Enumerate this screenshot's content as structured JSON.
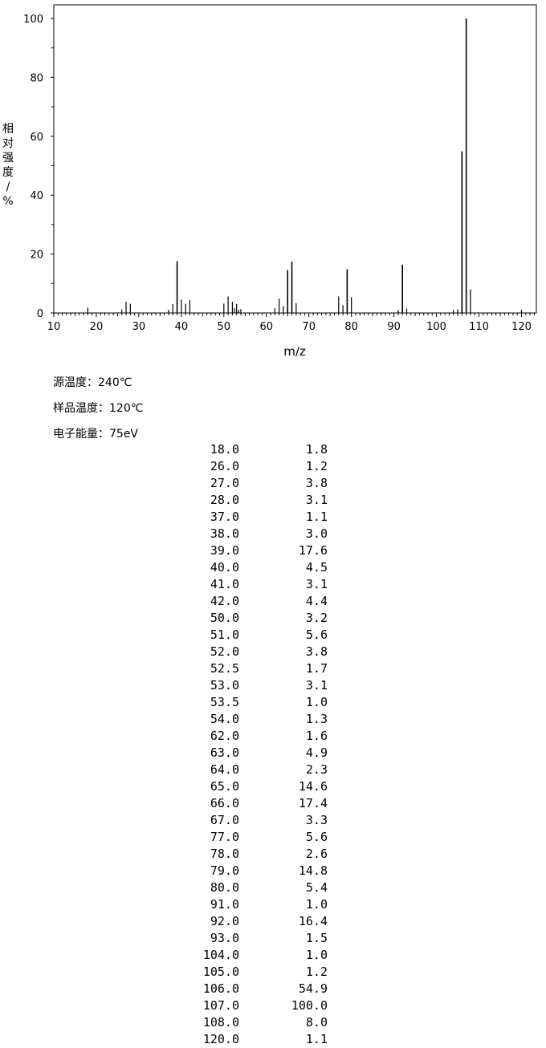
{
  "chart_data": {
    "type": "bar",
    "xlabel": "m/z",
    "ylabel": "相对强度/%",
    "xlim": [
      10,
      123.5
    ],
    "ylim": [
      0,
      100
    ],
    "xticks": [
      10,
      20,
      30,
      40,
      50,
      60,
      70,
      80,
      90,
      100,
      110,
      120
    ],
    "yticks": [
      0,
      20,
      40,
      60,
      80,
      100
    ],
    "grid": false,
    "peaks": [
      {
        "mz": 18.0,
        "intensity": 1.8
      },
      {
        "mz": 26.0,
        "intensity": 1.2
      },
      {
        "mz": 27.0,
        "intensity": 3.8
      },
      {
        "mz": 28.0,
        "intensity": 3.1
      },
      {
        "mz": 37.0,
        "intensity": 1.1
      },
      {
        "mz": 38.0,
        "intensity": 3.0
      },
      {
        "mz": 39.0,
        "intensity": 17.6
      },
      {
        "mz": 40.0,
        "intensity": 4.5
      },
      {
        "mz": 41.0,
        "intensity": 3.1
      },
      {
        "mz": 42.0,
        "intensity": 4.4
      },
      {
        "mz": 50.0,
        "intensity": 3.2
      },
      {
        "mz": 51.0,
        "intensity": 5.6
      },
      {
        "mz": 52.0,
        "intensity": 3.8
      },
      {
        "mz": 52.5,
        "intensity": 1.7
      },
      {
        "mz": 53.0,
        "intensity": 3.1
      },
      {
        "mz": 53.5,
        "intensity": 1.0
      },
      {
        "mz": 54.0,
        "intensity": 1.3
      },
      {
        "mz": 62.0,
        "intensity": 1.6
      },
      {
        "mz": 63.0,
        "intensity": 4.9
      },
      {
        "mz": 64.0,
        "intensity": 2.3
      },
      {
        "mz": 65.0,
        "intensity": 14.6
      },
      {
        "mz": 66.0,
        "intensity": 17.4
      },
      {
        "mz": 67.0,
        "intensity": 3.3
      },
      {
        "mz": 77.0,
        "intensity": 5.6
      },
      {
        "mz": 78.0,
        "intensity": 2.6
      },
      {
        "mz": 79.0,
        "intensity": 14.8
      },
      {
        "mz": 80.0,
        "intensity": 5.4
      },
      {
        "mz": 91.0,
        "intensity": 1.0
      },
      {
        "mz": 92.0,
        "intensity": 16.4
      },
      {
        "mz": 93.0,
        "intensity": 1.5
      },
      {
        "mz": 104.0,
        "intensity": 1.0
      },
      {
        "mz": 105.0,
        "intensity": 1.2
      },
      {
        "mz": 106.0,
        "intensity": 54.9
      },
      {
        "mz": 107.0,
        "intensity": 100.0
      },
      {
        "mz": 108.0,
        "intensity": 8.0
      },
      {
        "mz": 120.0,
        "intensity": 1.1
      }
    ]
  },
  "conditions": {
    "source_temp": "源温度：240℃",
    "sample_temp": "样品温度：120℃",
    "electron_energy": "电子能量：75eV"
  },
  "table": {
    "rows": [
      {
        "mz": "18.0",
        "intensity": "1.8"
      },
      {
        "mz": "26.0",
        "intensity": "1.2"
      },
      {
        "mz": "27.0",
        "intensity": "3.8"
      },
      {
        "mz": "28.0",
        "intensity": "3.1"
      },
      {
        "mz": "37.0",
        "intensity": "1.1"
      },
      {
        "mz": "38.0",
        "intensity": "3.0"
      },
      {
        "mz": "39.0",
        "intensity": "17.6"
      },
      {
        "mz": "40.0",
        "intensity": "4.5"
      },
      {
        "mz": "41.0",
        "intensity": "3.1"
      },
      {
        "mz": "42.0",
        "intensity": "4.4"
      },
      {
        "mz": "50.0",
        "intensity": "3.2"
      },
      {
        "mz": "51.0",
        "intensity": "5.6"
      },
      {
        "mz": "52.0",
        "intensity": "3.8"
      },
      {
        "mz": "52.5",
        "intensity": "1.7"
      },
      {
        "mz": "53.0",
        "intensity": "3.1"
      },
      {
        "mz": "53.5",
        "intensity": "1.0"
      },
      {
        "mz": "54.0",
        "intensity": "1.3"
      },
      {
        "mz": "62.0",
        "intensity": "1.6"
      },
      {
        "mz": "63.0",
        "intensity": "4.9"
      },
      {
        "mz": "64.0",
        "intensity": "2.3"
      },
      {
        "mz": "65.0",
        "intensity": "14.6"
      },
      {
        "mz": "66.0",
        "intensity": "17.4"
      },
      {
        "mz": "67.0",
        "intensity": "3.3"
      },
      {
        "mz": "77.0",
        "intensity": "5.6"
      },
      {
        "mz": "78.0",
        "intensity": "2.6"
      },
      {
        "mz": "79.0",
        "intensity": "14.8"
      },
      {
        "mz": "80.0",
        "intensity": "5.4"
      },
      {
        "mz": "91.0",
        "intensity": "1.0"
      },
      {
        "mz": "92.0",
        "intensity": "16.4"
      },
      {
        "mz": "93.0",
        "intensity": "1.5"
      },
      {
        "mz": "104.0",
        "intensity": "1.0"
      },
      {
        "mz": "105.0",
        "intensity": "1.2"
      },
      {
        "mz": "106.0",
        "intensity": "54.9"
      },
      {
        "mz": "107.0",
        "intensity": "100.0"
      },
      {
        "mz": "108.0",
        "intensity": "8.0"
      },
      {
        "mz": "120.0",
        "intensity": "1.1"
      }
    ]
  }
}
